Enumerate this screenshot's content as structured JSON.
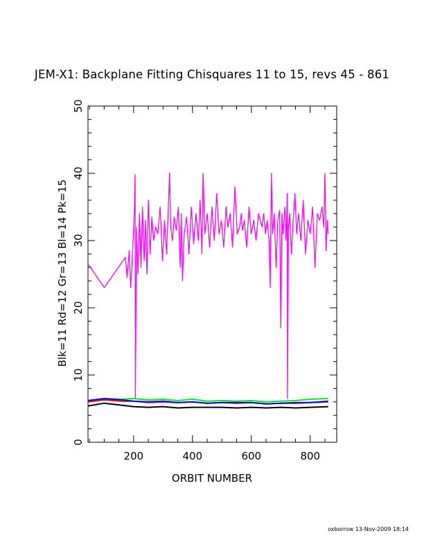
{
  "chart_data": {
    "type": "line",
    "title": "JEM-X1: Backplane Fitting Chisquares 11 to 15, revs 45 - 861",
    "xlabel": "ORBIT NUMBER",
    "ylabel": "Blk=11 Rd=12 Gr=13 Bl=14 Pk=15",
    "xlim": [
      45,
      890
    ],
    "ylim": [
      0,
      50
    ],
    "x_ticks": [
      200,
      400,
      600,
      800
    ],
    "y_ticks": [
      0,
      10,
      20,
      30,
      40,
      50
    ],
    "grid": false,
    "legend": "none",
    "series": [
      {
        "color": "#ff00ff",
        "x": [
          45,
          100,
          172,
          178,
          185,
          190,
          196,
          203,
          205,
          206,
          210,
          215,
          220,
          225,
          230,
          236,
          240,
          245,
          250,
          256,
          262,
          268,
          275,
          282,
          290,
          298,
          305,
          312,
          318,
          322,
          326,
          332,
          338,
          345,
          352,
          358,
          362,
          366,
          372,
          380,
          388,
          396,
          404,
          412,
          420,
          426,
          432,
          436,
          442,
          450,
          458,
          466,
          474,
          482,
          490,
          498,
          506,
          514,
          520,
          528,
          536,
          544,
          552,
          560,
          566,
          570,
          576,
          584,
          592,
          600,
          608,
          616,
          624,
          630,
          636,
          642,
          648,
          654,
          660,
          664,
          668,
          672,
          678,
          684,
          690,
          696,
          700,
          704,
          708,
          714,
          718,
          722,
          723,
          726,
          730,
          736,
          742,
          748,
          754,
          760,
          768,
          776,
          784,
          792,
          800,
          808,
          816,
          824,
          832,
          840,
          846,
          850,
          854,
          858,
          861
        ],
        "y": [
          26.5,
          23,
          27.5,
          24.5,
          28.5,
          23,
          28,
          35,
          39.8,
          6.5,
          32,
          25,
          34,
          26,
          35,
          27,
          33,
          25,
          36,
          28,
          33.5,
          30,
          32,
          31,
          35,
          27,
          33,
          28,
          35,
          40,
          32,
          30,
          33.5,
          31.5,
          35,
          26,
          34,
          24,
          31,
          33.5,
          28,
          35,
          29.5,
          34,
          30,
          36,
          28,
          40,
          31,
          34,
          29,
          35,
          30,
          37,
          31,
          33,
          29,
          35,
          32,
          34,
          29,
          38,
          31,
          32,
          34,
          31.5,
          33,
          29,
          35,
          31,
          33,
          30,
          34,
          33,
          32,
          34,
          31,
          33,
          30,
          23,
          40,
          31,
          34,
          26,
          33,
          34.5,
          17,
          34,
          31,
          35,
          30,
          37,
          6.5,
          32,
          34,
          28,
          33,
          37,
          31,
          34,
          30,
          36,
          28,
          33,
          31,
          35,
          26,
          34,
          33,
          35,
          32,
          40,
          28.5,
          33,
          31
        ]
      },
      {
        "color": "#00ee00",
        "x": [
          45,
          100,
          160,
          200,
          250,
          300,
          350,
          400,
          450,
          500,
          550,
          600,
          650,
          700,
          750,
          800,
          861
        ],
        "y": [
          6.2,
          6.5,
          6.4,
          6.5,
          6.3,
          6.4,
          6.2,
          6.4,
          6.1,
          6.2,
          6.1,
          6.2,
          6.0,
          6.1,
          6.2,
          6.4,
          6.5
        ]
      },
      {
        "color": "#ff0000",
        "x": [
          45,
          100,
          160,
          200,
          250,
          300,
          350,
          400,
          450,
          500,
          550,
          600,
          650,
          700,
          750,
          800,
          861
        ],
        "y": [
          6.0,
          6.3,
          6.1,
          6.1,
          5.9,
          6.0,
          5.9,
          6.0,
          5.8,
          5.9,
          5.8,
          5.9,
          5.7,
          5.8,
          5.8,
          5.9,
          6.0
        ]
      },
      {
        "color": "#0000ff",
        "x": [
          45,
          100,
          160,
          200,
          250,
          300,
          350,
          400,
          450,
          500,
          550,
          600,
          650,
          700,
          750,
          800,
          861
        ],
        "y": [
          6.2,
          6.5,
          6.3,
          6.1,
          6.0,
          6.1,
          5.9,
          6.0,
          5.8,
          5.9,
          5.9,
          5.9,
          5.7,
          5.8,
          5.9,
          5.9,
          6.1
        ]
      },
      {
        "color": "#000000",
        "x": [
          45,
          100,
          160,
          200,
          250,
          300,
          350,
          400,
          450,
          500,
          550,
          600,
          650,
          700,
          750,
          800,
          861
        ],
        "y": [
          5.4,
          5.8,
          5.5,
          5.3,
          5.2,
          5.3,
          5.1,
          5.2,
          5.2,
          5.2,
          5.1,
          5.2,
          5.1,
          5.2,
          5.1,
          5.2,
          5.3
        ]
      }
    ]
  },
  "footer": "oxborrow 13-Nov-2009 18:14"
}
